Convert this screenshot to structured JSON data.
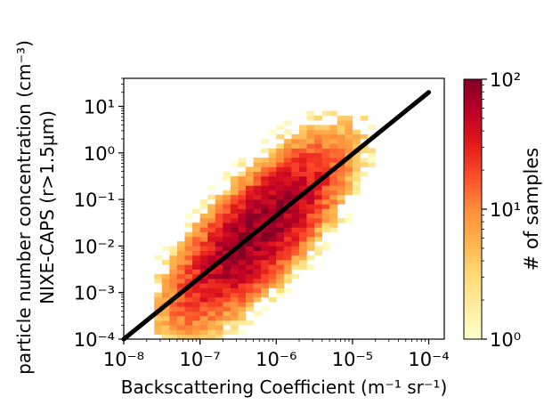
{
  "chart_data": {
    "type": "heatmap",
    "title": "",
    "xlabel": "Backscattering Coefficient (m⁻¹ sr⁻¹)",
    "ylabel_line1": "particle number concentration (cm⁻³)",
    "ylabel_line2": "NIXE-CAPS (r>1.5μm)",
    "x_scale": "log",
    "y_scale": "log",
    "xlim": [
      1e-08,
      0.00016
    ],
    "ylim": [
      0.0001,
      40
    ],
    "x_ticks": [
      {
        "value": 1e-08,
        "label": "10⁻⁸"
      },
      {
        "value": 1e-07,
        "label": "10⁻⁷"
      },
      {
        "value": 1e-06,
        "label": "10⁻⁶"
      },
      {
        "value": 1e-05,
        "label": "10⁻⁵"
      },
      {
        "value": 0.0001,
        "label": "10⁻⁴"
      }
    ],
    "y_ticks": [
      {
        "value": 0.0001,
        "label": "10⁻⁴"
      },
      {
        "value": 0.001,
        "label": "10⁻³"
      },
      {
        "value": 0.01,
        "label": "10⁻²"
      },
      {
        "value": 0.1,
        "label": "10⁻¹"
      },
      {
        "value": 1.0,
        "label": "10⁰"
      },
      {
        "value": 10.0,
        "label": "10¹"
      }
    ],
    "fit_line": {
      "x": [
        1e-08,
        0.0001
      ],
      "y": [
        0.0001,
        20
      ],
      "color": "#000000"
    },
    "density_model": {
      "description_of_cloud": "2D histogram centered along fit line, peak near x=1e-6, y=0.03",
      "peak_count": 90,
      "center_log_x": -6.3,
      "center_log_y": -1.6,
      "x_range_log": [
        -7.6,
        -4.8
      ],
      "y_range_log": [
        -4.0,
        0.9
      ]
    },
    "colorbar": {
      "label": "# of samples",
      "scale": "log",
      "range": [
        1,
        100
      ],
      "colormap": "YlOrRd",
      "ticks": [
        {
          "value": 1,
          "label": "10⁰"
        },
        {
          "value": 10,
          "label": "10¹"
        },
        {
          "value": 100,
          "label": "10²"
        }
      ]
    },
    "grid": false
  }
}
